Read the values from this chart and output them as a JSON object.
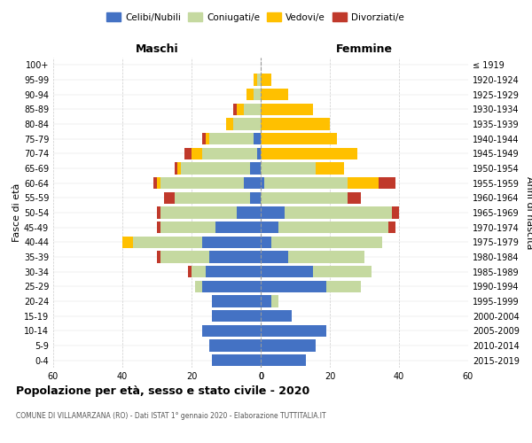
{
  "age_groups": [
    "0-4",
    "5-9",
    "10-14",
    "15-19",
    "20-24",
    "25-29",
    "30-34",
    "35-39",
    "40-44",
    "45-49",
    "50-54",
    "55-59",
    "60-64",
    "65-69",
    "70-74",
    "75-79",
    "80-84",
    "85-89",
    "90-94",
    "95-99",
    "100+"
  ],
  "birth_years": [
    "2015-2019",
    "2010-2014",
    "2005-2009",
    "2000-2004",
    "1995-1999",
    "1990-1994",
    "1985-1989",
    "1980-1984",
    "1975-1979",
    "1970-1974",
    "1965-1969",
    "1960-1964",
    "1955-1959",
    "1950-1954",
    "1945-1949",
    "1940-1944",
    "1935-1939",
    "1930-1934",
    "1925-1929",
    "1920-1924",
    "≤ 1919"
  ],
  "maschi": {
    "celibi": [
      14,
      15,
      17,
      14,
      14,
      17,
      16,
      15,
      17,
      13,
      7,
      3,
      5,
      3,
      1,
      2,
      0,
      0,
      0,
      0,
      0
    ],
    "coniugati": [
      0,
      0,
      0,
      0,
      0,
      2,
      4,
      14,
      20,
      16,
      22,
      22,
      24,
      20,
      16,
      13,
      8,
      5,
      2,
      1,
      0
    ],
    "vedovi": [
      0,
      0,
      0,
      0,
      0,
      0,
      0,
      0,
      3,
      0,
      0,
      0,
      1,
      1,
      3,
      1,
      2,
      2,
      2,
      1,
      0
    ],
    "divorziati": [
      0,
      0,
      0,
      0,
      0,
      0,
      1,
      1,
      0,
      1,
      1,
      3,
      1,
      1,
      2,
      1,
      0,
      1,
      0,
      0,
      0
    ]
  },
  "femmine": {
    "nubili": [
      13,
      16,
      19,
      9,
      3,
      19,
      15,
      8,
      3,
      5,
      7,
      0,
      1,
      0,
      0,
      0,
      0,
      0,
      0,
      0,
      0
    ],
    "coniugate": [
      0,
      0,
      0,
      0,
      2,
      10,
      17,
      22,
      32,
      32,
      31,
      25,
      24,
      16,
      0,
      0,
      0,
      0,
      0,
      0,
      0
    ],
    "vedove": [
      0,
      0,
      0,
      0,
      0,
      0,
      0,
      0,
      0,
      0,
      0,
      0,
      9,
      8,
      28,
      22,
      20,
      15,
      8,
      3,
      0
    ],
    "divorziate": [
      0,
      0,
      0,
      0,
      0,
      0,
      0,
      0,
      0,
      2,
      2,
      4,
      5,
      0,
      0,
      0,
      0,
      0,
      0,
      0,
      0
    ]
  },
  "colors": {
    "celibi": "#4472c4",
    "coniugati": "#c5d9a0",
    "vedovi": "#ffc000",
    "divorziati": "#c0392b"
  },
  "title": "Popolazione per età, sesso e stato civile - 2020",
  "subtitle": "COMUNE DI VILLAMARZANA (RO) - Dati ISTAT 1° gennaio 2020 - Elaborazione TUTTITALIA.IT",
  "xlabel_maschi": "Maschi",
  "xlabel_femmine": "Femmine",
  "ylabel_left": "Fasce di età",
  "ylabel_right": "Anni di nascita",
  "xlim": 60,
  "legend_labels": [
    "Celibi/Nubili",
    "Coniugati/e",
    "Vedovi/e",
    "Divorziati/e"
  ],
  "background_color": "#ffffff"
}
